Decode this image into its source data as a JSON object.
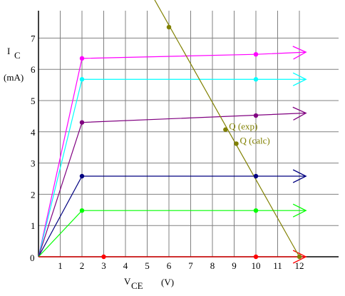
{
  "chart_data": {
    "type": "line",
    "x_ticks": [
      "1",
      "2",
      "3",
      "4",
      "5",
      "6",
      "7",
      "8",
      "9",
      "10",
      "11",
      "12"
    ],
    "y_ticks": [
      "0",
      "1",
      "2",
      "3",
      "4",
      "5",
      "6",
      "7"
    ],
    "x_origin_label": "0",
    "xlim": [
      0,
      13.5
    ],
    "ylim": [
      0,
      7.3
    ],
    "grid": true,
    "ylabel": {
      "main": "I",
      "sub": "C",
      "unit": "(mA)"
    },
    "xlabel": {
      "main": "V",
      "sub": "CE",
      "unit": "(V)"
    },
    "series": [
      {
        "color": "#ff00ff",
        "points": [
          [
            0,
            0
          ],
          [
            2,
            6.35
          ],
          [
            10,
            6.48
          ],
          [
            12.3,
            6.55
          ]
        ],
        "markers": [
          [
            2,
            6.35
          ],
          [
            10,
            6.48
          ]
        ]
      },
      {
        "color": "#00ffff",
        "points": [
          [
            0,
            0
          ],
          [
            2,
            5.68
          ],
          [
            12.3,
            5.68
          ]
        ],
        "markers": [
          [
            2,
            5.68
          ],
          [
            10,
            5.68
          ]
        ]
      },
      {
        "color": "#800080",
        "points": [
          [
            0,
            0
          ],
          [
            2,
            4.3
          ],
          [
            12.3,
            4.6
          ]
        ],
        "markers": [
          [
            2,
            4.3
          ],
          [
            10,
            4.52
          ]
        ]
      },
      {
        "color": "#000080",
        "points": [
          [
            0,
            0
          ],
          [
            2,
            2.58
          ],
          [
            12.3,
            2.58
          ]
        ],
        "markers": [
          [
            2,
            2.58
          ],
          [
            10,
            2.58
          ]
        ]
      },
      {
        "color": "#00ff00",
        "points": [
          [
            0,
            0
          ],
          [
            2,
            1.48
          ],
          [
            12.3,
            1.48
          ]
        ],
        "markers": [
          [
            2,
            1.48
          ],
          [
            10,
            1.48
          ]
        ]
      },
      {
        "color": "#ff0000",
        "points": [
          [
            0,
            0
          ],
          [
            12.3,
            0
          ]
        ],
        "markers": [
          [
            3,
            0
          ],
          [
            10,
            0
          ]
        ]
      }
    ],
    "load_line": {
      "color": "#808000",
      "points": [
        [
          5.2,
          8.4
        ],
        [
          12,
          0
        ]
      ],
      "markers": [
        [
          6,
          7.35
        ],
        [
          12,
          0
        ]
      ]
    },
    "annotations": [
      {
        "text": "Q (exp)",
        "point": [
          8.6,
          4.07
        ],
        "color": "#808000"
      },
      {
        "text": "Q (calc)",
        "point": [
          9.1,
          3.62
        ],
        "color": "#808000"
      }
    ]
  }
}
